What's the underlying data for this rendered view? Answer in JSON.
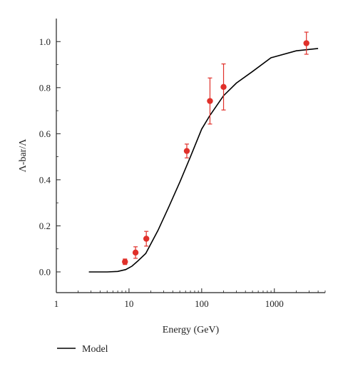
{
  "chart_data": {
    "type": "scatter",
    "title": "",
    "xlabel": "Energy (GeV)",
    "ylabel": "Λ-bar/Λ",
    "x_scale": "log",
    "xlim": [
      1,
      5000
    ],
    "ylim": [
      -0.09,
      1.1
    ],
    "x_ticks": [
      1,
      10,
      100,
      1000
    ],
    "x_tick_labels": [
      "1",
      "10",
      "100",
      "1000"
    ],
    "y_ticks": [
      0.0,
      0.2,
      0.4,
      0.6,
      0.8,
      1.0
    ],
    "y_tick_labels": [
      "0.0",
      "0.2",
      "0.4",
      "0.6",
      "0.8",
      "1.0"
    ],
    "grid": false,
    "legend_position": "bottom-left",
    "series": [
      {
        "name": "Model",
        "kind": "line",
        "color": "#000000",
        "x": [
          2.8,
          5,
          7,
          9,
          11,
          13,
          17,
          25,
          35,
          50,
          70,
          100,
          130,
          200,
          300,
          500,
          900,
          2000,
          4000
        ],
        "y": [
          0.0,
          0.0,
          0.002,
          0.01,
          0.025,
          0.045,
          0.08,
          0.18,
          0.28,
          0.39,
          0.5,
          0.62,
          0.68,
          0.765,
          0.82,
          0.87,
          0.93,
          0.96,
          0.97
        ]
      },
      {
        "kind": "points",
        "color": "#e0302a",
        "x": [
          8.8,
          12.3,
          17.3,
          62.4,
          130,
          200,
          2760
        ],
        "y": [
          0.044,
          0.084,
          0.144,
          0.525,
          0.742,
          0.803,
          0.993
        ],
        "yerr": [
          0.012,
          0.025,
          0.032,
          0.03,
          0.1,
          0.1,
          0.048
        ]
      }
    ]
  }
}
